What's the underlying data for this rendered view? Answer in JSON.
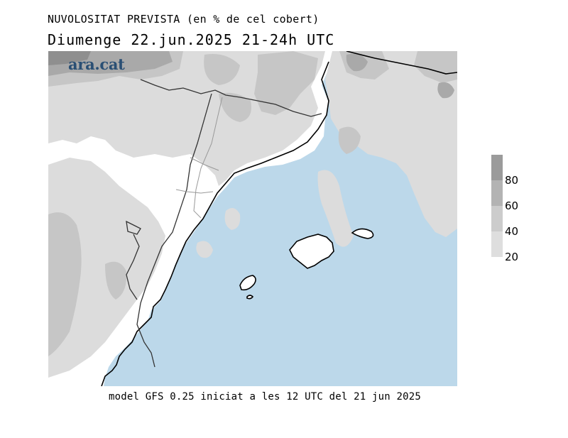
{
  "header": {
    "title": "NUVOLOSITAT PREVISTA (en % de cel cobert)",
    "subtitle": "Diumenge  22.jun.2025 21-24h UTC"
  },
  "logo": {
    "text": "ara.cat",
    "color": "#2a4f74"
  },
  "legend": {
    "labels": [
      "80",
      "60",
      "40",
      "20"
    ],
    "colors": [
      "#9b9b9b",
      "#b3b3b3",
      "#cccccc",
      "#dedede"
    ]
  },
  "map": {
    "sea_color": "#bcd8ea",
    "land_color": "#ffffff",
    "cloud_colors": [
      "#dcdcdc",
      "#c6c6c6",
      "#a9a9a9",
      "#8f8f8f"
    ]
  },
  "footer": {
    "text": "model GFS 0.25 iniciat a les 12 UTC del 21 jun 2025"
  }
}
